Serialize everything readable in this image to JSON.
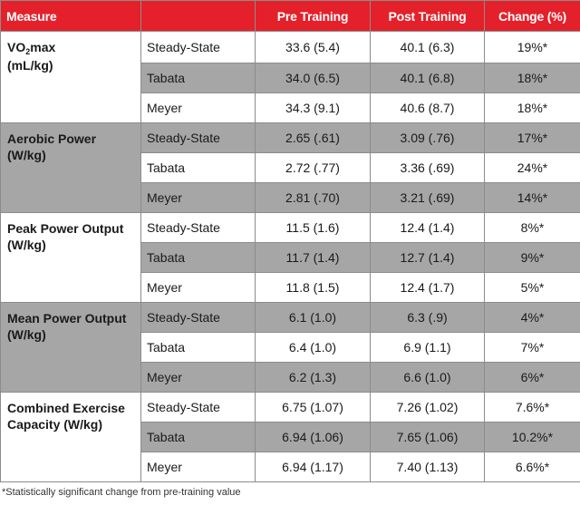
{
  "headers": [
    "Measure",
    "",
    "Pre Training",
    "Post Training",
    "Change (%)"
  ],
  "groups": [
    {
      "measure_line1": "VO",
      "measure_sub": "2",
      "measure_line1_suffix": "max",
      "measure_line2": "(mL/kg)",
      "rows": [
        {
          "protocol": "Steady-State",
          "pre": "33.6 (5.4)",
          "post": "40.1 (6.3)",
          "change": "19%*"
        },
        {
          "protocol": "Tabata",
          "pre": "34.0 (6.5)",
          "post": "40.1 (6.8)",
          "change": "18%*"
        },
        {
          "protocol": "Meyer",
          "pre": "34.3 (9.1)",
          "post": "40.6 (8.7)",
          "change": "18%*"
        }
      ]
    },
    {
      "measure_line1": "Aerobic Power",
      "measure_line2": "(W/kg)",
      "rows": [
        {
          "protocol": "Steady-State",
          "pre": "2.65 (.61)",
          "post": "3.09 (.76)",
          "change": "17%*"
        },
        {
          "protocol": "Tabata",
          "pre": "2.72 (.77)",
          "post": "3.36 (.69)",
          "change": "24%*"
        },
        {
          "protocol": "Meyer",
          "pre": "2.81 (.70)",
          "post": "3.21 (.69)",
          "change": "14%*"
        }
      ]
    },
    {
      "measure_line1": "Peak Power Output",
      "measure_line2": "(W/kg)",
      "rows": [
        {
          "protocol": "Steady-State",
          "pre": "11.5 (1.6)",
          "post": "12.4 (1.4)",
          "change": "8%*"
        },
        {
          "protocol": "Tabata",
          "pre": "11.7 (1.4)",
          "post": "12.7 (1.4)",
          "change": "9%*"
        },
        {
          "protocol": "Meyer",
          "pre": "11.8 (1.5)",
          "post": "12.4 (1.7)",
          "change": "5%*"
        }
      ]
    },
    {
      "measure_line1": "Mean Power Output",
      "measure_line2": "(W/kg)",
      "rows": [
        {
          "protocol": "Steady-State",
          "pre": "6.1 (1.0)",
          "post": "6.3 (.9)",
          "change": "4%*"
        },
        {
          "protocol": "Tabata",
          "pre": "6.4 (1.0)",
          "post": "6.9 (1.1)",
          "change": "7%*"
        },
        {
          "protocol": "Meyer",
          "pre": "6.2 (1.3)",
          "post": "6.6 (1.0)",
          "change": "6%*"
        }
      ]
    },
    {
      "measure_line1": "Combined Exercise",
      "measure_line2": "Capacity (W/kg)",
      "rows": [
        {
          "protocol": "Steady-State",
          "pre": "6.75 (1.07)",
          "post": "7.26 (1.02)",
          "change": "7.6%*"
        },
        {
          "protocol": "Tabata",
          "pre": "6.94 (1.06)",
          "post": "7.65 (1.06)",
          "change": "10.2%*"
        },
        {
          "protocol": "Meyer",
          "pre": "6.94 (1.17)",
          "post": "7.40 (1.13)",
          "change": "6.6%*"
        }
      ]
    }
  ],
  "footnote": "*Statistically significant change from pre-training value",
  "colors": {
    "header": "#e4212b",
    "shade": "#a6a6a6",
    "border": "#8c8c8c"
  }
}
